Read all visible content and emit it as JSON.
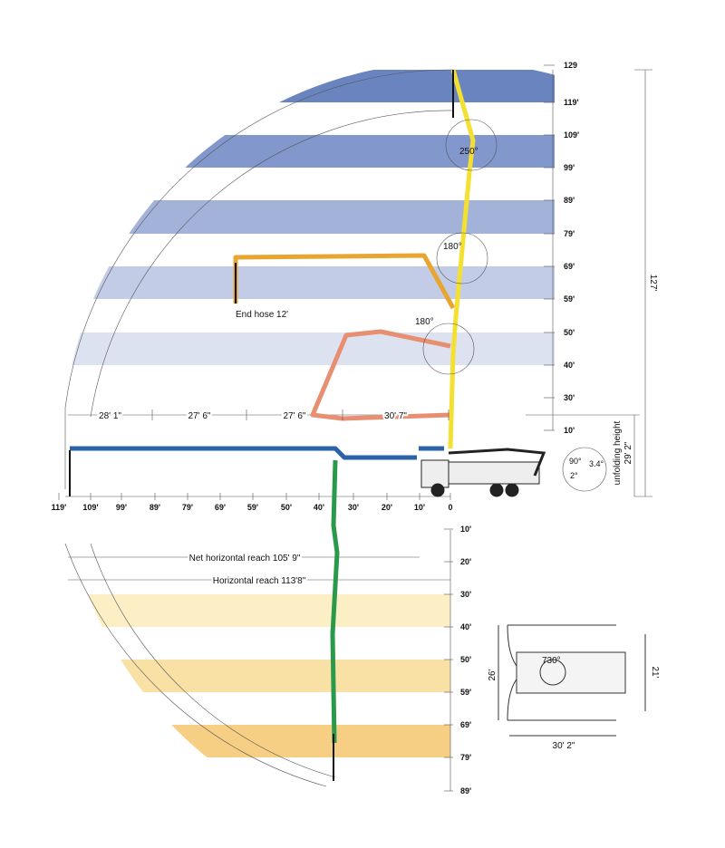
{
  "upper_scale": {
    "labels": [
      "129",
      "119'",
      "109'",
      "99'",
      "89'",
      "79'",
      "69'",
      "59'",
      "50'",
      "40'",
      "30'",
      "10'"
    ]
  },
  "total_height": "127'",
  "unfolding_height": {
    "label": "unfolding height",
    "value": "29' 2\""
  },
  "outrigger_angles": [
    "90°",
    "3.4°",
    "2°"
  ],
  "joint_angles": [
    "250°",
    "180°",
    "180°"
  ],
  "end_hose": "End hose 12'",
  "section_lengths": [
    "28' 1\"",
    "27' 6\"",
    "27' 6\"",
    "30' 7\""
  ],
  "horizontal_axis": {
    "labels": [
      "119'",
      "109'",
      "99'",
      "89'",
      "79'",
      "69'",
      "59'",
      "50'",
      "40'",
      "30'",
      "20'",
      "10'",
      "0"
    ]
  },
  "lower_scale": {
    "labels": [
      "10'",
      "20'",
      "30'",
      "40'",
      "50'",
      "59'",
      "69'",
      "79'",
      "89'"
    ]
  },
  "net_horizontal_reach": "Net horizontal reach 105' 9\"",
  "horizontal_reach": "Horizontal reach 113'8\"",
  "plan_view": {
    "slew_angle": "730°",
    "front_spread": "26'",
    "rear_spread": "21'",
    "length": "30' 2\""
  }
}
